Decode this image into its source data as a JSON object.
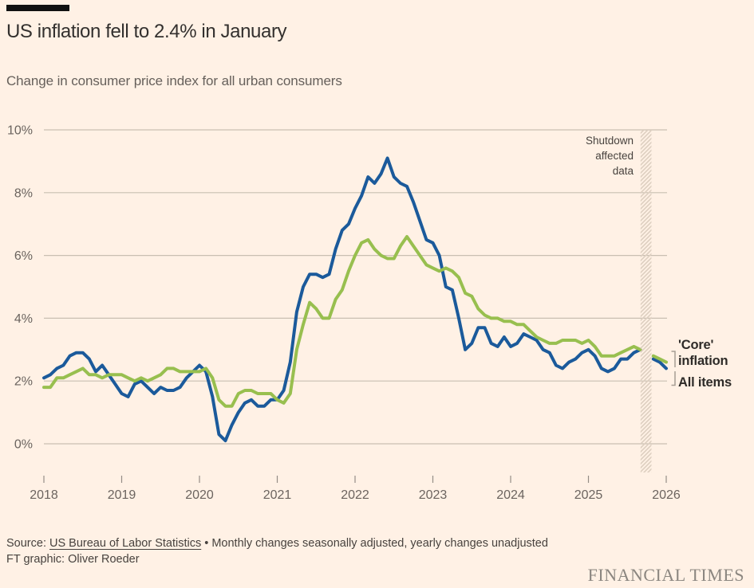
{
  "header": {
    "title": "US inflation fell to 2.4% in January",
    "subtitle": "Change in consumer price index for all urban consumers"
  },
  "annotation": {
    "lines": [
      "Shutdown",
      "affected",
      "data"
    ]
  },
  "series_labels": {
    "core": "'Core' inflation",
    "all_items": "All items"
  },
  "footer": {
    "source_label": "Source: ",
    "source_link": "US Bureau of Labor Statistics",
    "source_note": " • Monthly changes seasonally adjusted, yearly changes unadjusted",
    "credit": "FT graphic: Oliver Roeder",
    "brand": "FINANCIAL TIMES"
  },
  "colors": {
    "background": "#fff1e5",
    "all_items_line": "#1b5a9b",
    "core_line": "#98bf4f",
    "gridline": "#c9bfb2",
    "axis_text": "#6b645f",
    "hatch": "#ddcfc0"
  },
  "chart_data": {
    "type": "line",
    "title": "US inflation fell to 2.4% in January",
    "subtitle": "Change in consumer price index for all urban consumers",
    "xlabel": "",
    "ylabel": "",
    "ylim": [
      0,
      10
    ],
    "grid": "horizontal",
    "x_unit": "monthly, starting 2018-01",
    "x_ticks": [
      {
        "year": 2018,
        "label": "2018"
      },
      {
        "year": 2019,
        "label": "2019"
      },
      {
        "year": 2020,
        "label": "2020"
      },
      {
        "year": 2021,
        "label": "2021"
      },
      {
        "year": 2022,
        "label": "2022"
      },
      {
        "year": 2023,
        "label": "2023"
      },
      {
        "year": 2024,
        "label": "2024"
      },
      {
        "year": 2025,
        "label": "2025"
      },
      {
        "year": 2026,
        "label": "2026"
      }
    ],
    "y_ticks": [
      {
        "value": 0,
        "label": "0%"
      },
      {
        "value": 2,
        "label": "2%"
      },
      {
        "value": 4,
        "label": "4%"
      },
      {
        "value": 6,
        "label": "6%"
      },
      {
        "value": 8,
        "label": "8%"
      },
      {
        "value": 10,
        "label": "10%"
      }
    ],
    "shutdown_band": {
      "label": "Shutdown affected data",
      "from_year": 2025.67,
      "to_year": 2025.81
    },
    "post_shutdown_start": "2025-11",
    "post_shutdown_start_month_index": 94,
    "series": [
      {
        "name": "All items",
        "color": "#1b5a9b",
        "start": "2018-01",
        "values": [
          2.1,
          2.2,
          2.4,
          2.5,
          2.8,
          2.9,
          2.9,
          2.7,
          2.3,
          2.5,
          2.2,
          1.9,
          1.6,
          1.5,
          1.9,
          2.0,
          1.8,
          1.6,
          1.8,
          1.7,
          1.7,
          1.8,
          2.1,
          2.3,
          2.5,
          2.3,
          1.5,
          0.3,
          0.1,
          0.6,
          1.0,
          1.3,
          1.4,
          1.2,
          1.2,
          1.4,
          1.4,
          1.7,
          2.6,
          4.2,
          5.0,
          5.4,
          5.4,
          5.3,
          5.4,
          6.2,
          6.8,
          7.0,
          7.5,
          7.9,
          8.5,
          8.3,
          8.6,
          9.1,
          8.5,
          8.3,
          8.2,
          7.7,
          7.1,
          6.5,
          6.4,
          6.0,
          5.0,
          4.9,
          4.0,
          3.0,
          3.2,
          3.7,
          3.7,
          3.2,
          3.1,
          3.4,
          3.1,
          3.2,
          3.5,
          3.4,
          3.3,
          3.0,
          2.9,
          2.5,
          2.4,
          2.6,
          2.7,
          2.9,
          3.0,
          2.8,
          2.4,
          2.3,
          2.4,
          2.7,
          2.7,
          2.9,
          3.0
        ],
        "post_shutdown_values": [
          2.7,
          2.6,
          2.4
        ]
      },
      {
        "name": "'Core' inflation",
        "color": "#98bf4f",
        "start": "2018-01",
        "values": [
          1.8,
          1.8,
          2.1,
          2.1,
          2.2,
          2.3,
          2.4,
          2.2,
          2.2,
          2.1,
          2.2,
          2.2,
          2.2,
          2.1,
          2.0,
          2.1,
          2.0,
          2.1,
          2.2,
          2.4,
          2.4,
          2.3,
          2.3,
          2.3,
          2.3,
          2.4,
          2.1,
          1.4,
          1.2,
          1.2,
          1.6,
          1.7,
          1.7,
          1.6,
          1.6,
          1.6,
          1.4,
          1.3,
          1.6,
          3.0,
          3.8,
          4.5,
          4.3,
          4.0,
          4.0,
          4.6,
          4.9,
          5.5,
          6.0,
          6.4,
          6.5,
          6.2,
          6.0,
          5.9,
          5.9,
          6.3,
          6.6,
          6.3,
          6.0,
          5.7,
          5.6,
          5.5,
          5.6,
          5.5,
          5.3,
          4.8,
          4.7,
          4.3,
          4.1,
          4.0,
          4.0,
          3.9,
          3.9,
          3.8,
          3.8,
          3.6,
          3.4,
          3.3,
          3.2,
          3.2,
          3.3,
          3.3,
          3.3,
          3.2,
          3.3,
          3.1,
          2.8,
          2.8,
          2.8,
          2.9,
          3.0,
          3.1,
          3.0
        ],
        "post_shutdown_values": [
          2.8,
          2.7,
          2.6
        ]
      }
    ]
  }
}
